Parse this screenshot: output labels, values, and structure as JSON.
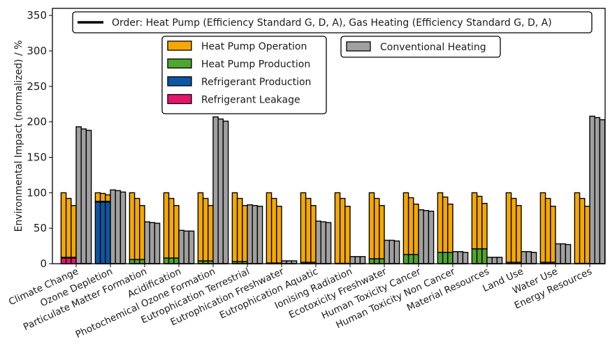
{
  "chart_data": {
    "type": "bar",
    "title": "",
    "xlabel": "",
    "ylabel": "Environmental Impact (normalized) / %",
    "ylim": [
      0,
      360
    ],
    "yticks": [
      0,
      50,
      100,
      150,
      200,
      250,
      300,
      350
    ],
    "grid": false,
    "order_note": "Order: Heat Pump (Efficiency Standard G, D, A), Gas Heating (Efficiency Standard G, D, A)",
    "legend_position": "top",
    "legend_hp": [
      {
        "name": "Heat Pump Operation",
        "color": "#F5A800"
      },
      {
        "name": "Heat Pump Production",
        "color": "#4FA52E"
      },
      {
        "name": "Refrigerant Production",
        "color": "#0B57A3"
      },
      {
        "name": "Refrigerant Leakage",
        "color": "#E5156B"
      }
    ],
    "legend_gas": [
      {
        "name": "Conventional Heating",
        "color": "#A0A0A0"
      }
    ],
    "efficiency_standards": [
      "G",
      "D",
      "A"
    ],
    "categories": [
      "Climate Change",
      "Ozone Depletion",
      "Particulate Matter Formation",
      "Acidification",
      "Photochemical Ozone Formation",
      "Eutrophication Terrestrial",
      "Eutrophication Freshwater",
      "Eutrophication Aquatic",
      "Ionising Radiation",
      "Ecotoxicity Freshwater",
      "Human Toxicity Cancer",
      "Human Toxicity Non Cancer",
      "Material Resources",
      "Land Use",
      "Water Use",
      "Energy Resources"
    ],
    "heat_pump_totals": [
      [
        100,
        92,
        82
      ],
      [
        100,
        99,
        97
      ],
      [
        100,
        92,
        82
      ],
      [
        100,
        92,
        82
      ],
      [
        100,
        92,
        82
      ],
      [
        100,
        92,
        82
      ],
      [
        100,
        92,
        81
      ],
      [
        100,
        92,
        82
      ],
      [
        100,
        92,
        81
      ],
      [
        100,
        92,
        82
      ],
      [
        100,
        93,
        84
      ],
      [
        100,
        94,
        84
      ],
      [
        100,
        95,
        85
      ],
      [
        100,
        92,
        82
      ],
      [
        100,
        92,
        81
      ],
      [
        100,
        92,
        81
      ]
    ],
    "heat_pump_production": [
      [
        1,
        1,
        1
      ],
      [
        1,
        1,
        1
      ],
      [
        6,
        6,
        6
      ],
      [
        8,
        8,
        8
      ],
      [
        4,
        4,
        4
      ],
      [
        3,
        3,
        3
      ],
      [
        1,
        1,
        1
      ],
      [
        2,
        2,
        2
      ],
      [
        0.5,
        0.5,
        0.5
      ],
      [
        7,
        7,
        7
      ],
      [
        13,
        13,
        13
      ],
      [
        16,
        16,
        16
      ],
      [
        21,
        21,
        21
      ],
      [
        2,
        2,
        2
      ],
      [
        2,
        2,
        2
      ],
      [
        0.5,
        0.5,
        0.5
      ]
    ],
    "refrigerant_production": [
      [
        0,
        0,
        0
      ],
      [
        87,
        87,
        87
      ],
      [
        0,
        0,
        0
      ],
      [
        0,
        0,
        0
      ],
      [
        0,
        0,
        0
      ],
      [
        0,
        0,
        0
      ],
      [
        0,
        0,
        0
      ],
      [
        0,
        0,
        0
      ],
      [
        0,
        0,
        0
      ],
      [
        0,
        0,
        0
      ],
      [
        0,
        0,
        0
      ],
      [
        0,
        0,
        0
      ],
      [
        0,
        0,
        0
      ],
      [
        0,
        0,
        0
      ],
      [
        0,
        0,
        0
      ],
      [
        0,
        0,
        0
      ]
    ],
    "refrigerant_leakage": [
      [
        8,
        8,
        8
      ],
      [
        0,
        0,
        0
      ],
      [
        0,
        0,
        0
      ],
      [
        0,
        0,
        0
      ],
      [
        0,
        0,
        0
      ],
      [
        0,
        0,
        0
      ],
      [
        0,
        0,
        0
      ],
      [
        0,
        0,
        0
      ],
      [
        0,
        0,
        0
      ],
      [
        0,
        0,
        0
      ],
      [
        0,
        0,
        0
      ],
      [
        0,
        0,
        0
      ],
      [
        0,
        0,
        0
      ],
      [
        0,
        0,
        0
      ],
      [
        0,
        0,
        0
      ],
      [
        0,
        0,
        0
      ]
    ],
    "gas_heating": [
      [
        193,
        190,
        188
      ],
      [
        104,
        103,
        101
      ],
      [
        59,
        58,
        57
      ],
      [
        47,
        46,
        46
      ],
      [
        207,
        204,
        201
      ],
      [
        83,
        82,
        81
      ],
      [
        4,
        4,
        4
      ],
      [
        60,
        59,
        58
      ],
      [
        10,
        10,
        10
      ],
      [
        33,
        33,
        32
      ],
      [
        76,
        75,
        74
      ],
      [
        17,
        17,
        16
      ],
      [
        9,
        9,
        9
      ],
      [
        17,
        17,
        16
      ],
      [
        28,
        28,
        27
      ],
      [
        208,
        206,
        203
      ]
    ]
  }
}
